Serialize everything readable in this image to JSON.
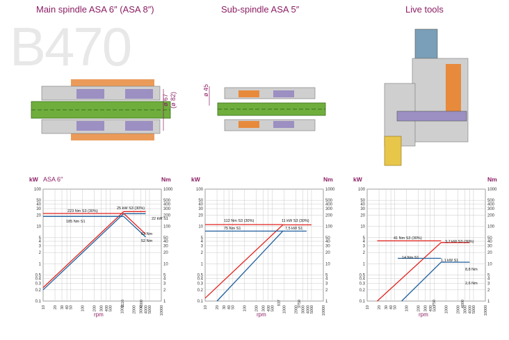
{
  "model_watermark": "B470",
  "headers": {
    "main": "Main spindle ASA 6″ (ASA 8″)",
    "sub": "Sub-spindle ASA 5″",
    "live": "Live tools"
  },
  "dimension_labels": {
    "main_d1": "ø 67",
    "main_d2": "(ø 82)",
    "sub_d1": "ø 45"
  },
  "axis_text": {
    "kw": "kW",
    "nm": "Nm",
    "rpm": "rpm",
    "chart1_tag": "ASA 6″"
  },
  "colors": {
    "accent": "#8b1d63",
    "s3_red": "#e2211c",
    "s1_blue": "#1f5f9e",
    "grid": "#c8c8c8",
    "green_shaft": "#6fae3c",
    "orange_part": "#e88a3c",
    "purple_part": "#9c8fc2"
  },
  "chart_data": [
    {
      "type": "line",
      "title": "ASA 6″",
      "xlabel": "rpm",
      "ylabel_left": "kW",
      "ylabel_right": "Nm",
      "xscale": "log",
      "yscale": "log",
      "xlim": [
        10,
        10000
      ],
      "ylim_kw": [
        0.1,
        100
      ],
      "ylim_nm": [
        1,
        1000
      ],
      "x_ticks": [
        "10",
        "20",
        "30",
        "40",
        "50",
        "100",
        "200",
        "300",
        "400",
        "500",
        "1000",
        "2000",
        "3000",
        "4000",
        "5000",
        "10000"
      ],
      "y_ticks_kw": [
        "0.1",
        "0.2",
        "0.3",
        "0.4",
        "0.5",
        "1",
        "2",
        "3",
        "4",
        "5",
        "10",
        "20",
        "30",
        "40",
        "50",
        "100"
      ],
      "y_ticks_nm": [
        "1",
        "2",
        "3",
        "4",
        "5",
        "10",
        "20",
        "30",
        "40",
        "50",
        "100",
        "200",
        "300",
        "400",
        "500",
        "1000"
      ],
      "series": [
        {
          "name": "223 Nm S3 (30%)",
          "unit": "Nm",
          "points": [
            [
              10,
              223
            ],
            [
              1110,
              223
            ]
          ]
        },
        {
          "name": "25 kW S3 (30%)",
          "unit": "kW",
          "points": [
            [
              10,
              0.23
            ],
            [
              1110,
              25
            ],
            [
              4000,
              25
            ]
          ]
        },
        {
          "name": "185 Nm S1",
          "unit": "Nm",
          "points": [
            [
              10,
              185
            ],
            [
              1110,
              185
            ]
          ]
        },
        {
          "name": "22 kW S1",
          "unit": "kW",
          "points": [
            [
              10,
              0.2
            ],
            [
              1110,
              22
            ],
            [
              4000,
              22
            ]
          ]
        },
        {
          "name": "62 Nm",
          "unit": "Nm",
          "points": [
            [
              1110,
              223
            ],
            [
              4000,
              62
            ]
          ]
        },
        {
          "name": "52 Nm",
          "unit": "Nm",
          "points": [
            [
              1110,
              185
            ],
            [
              4000,
              52
            ]
          ]
        }
      ],
      "annotations": [
        "223 Nm S3 (30%)",
        "25 kW S3 (30%)",
        "185 Nm S1",
        "22 kW S1",
        "62 Nm",
        "52 Nm",
        "1110",
        "4000"
      ]
    },
    {
      "type": "line",
      "title": "",
      "xlabel": "rpm",
      "ylabel_left": "kW",
      "ylabel_right": "Nm",
      "xscale": "log",
      "yscale": "log",
      "xlim": [
        10,
        10000
      ],
      "ylim_kw": [
        0.1,
        100
      ],
      "ylim_nm": [
        1,
        1000
      ],
      "series": [
        {
          "name": "112 Nm S3 (30%)",
          "unit": "Nm",
          "points": [
            [
              10,
              112
            ],
            [
              937,
              112
            ]
          ]
        },
        {
          "name": "11 kW S3 (30%)",
          "unit": "kW",
          "points": [
            [
              10,
              0.12
            ],
            [
              937,
              11
            ],
            [
              5000,
              11
            ]
          ]
        },
        {
          "name": "75 Nm S1",
          "unit": "Nm",
          "points": [
            [
              10,
              75
            ],
            [
              937,
              75
            ]
          ]
        },
        {
          "name": "7.5 kW S1",
          "unit": "kW",
          "points": [
            [
              20,
              0.1
            ],
            [
              937,
              7.5
            ],
            [
              3750,
              7.5
            ]
          ]
        }
      ],
      "annotations": [
        "112 Nm S3 (30%)",
        "11 kW S3 (30%)",
        "75 Nm S1",
        "7,5 kW S1",
        "937",
        "3750"
      ]
    },
    {
      "type": "line",
      "title": "",
      "xlabel": "rpm",
      "ylabel_left": "kW",
      "ylabel_right": "Nm",
      "xscale": "log",
      "yscale": "log",
      "xlim": [
        10,
        10000
      ],
      "ylim_kw": [
        0.1,
        100
      ],
      "ylim_nm": [
        1,
        1000
      ],
      "series": [
        {
          "name": "41 Nm S3 (30%)",
          "unit": "Nm",
          "points": [
            [
              18,
              41
            ],
            [
              750,
              41
            ]
          ]
        },
        {
          "name": "3.7 kW S3 (30%)",
          "unit": "kW",
          "points": [
            [
              18,
              0.1
            ],
            [
              750,
              3.7
            ],
            [
              4000,
              3.7
            ]
          ]
        },
        {
          "name": "14 Nm S1",
          "unit": "Nm",
          "points": [
            [
              60,
              14
            ],
            [
              750,
              14
            ]
          ]
        },
        {
          "name": "1.1 kW S1",
          "unit": "kW",
          "points": [
            [
              75,
              0.1
            ],
            [
              750,
              1.1
            ],
            [
              4000,
              1.1
            ]
          ]
        }
      ],
      "annotations": [
        "41 Nm S3 (30%)",
        "3,7 kW S3 (30%)",
        "14 Nm S1",
        "1,1 kW S1",
        "8,8 Nm",
        "2,6 Nm",
        "750",
        "4000"
      ]
    }
  ]
}
